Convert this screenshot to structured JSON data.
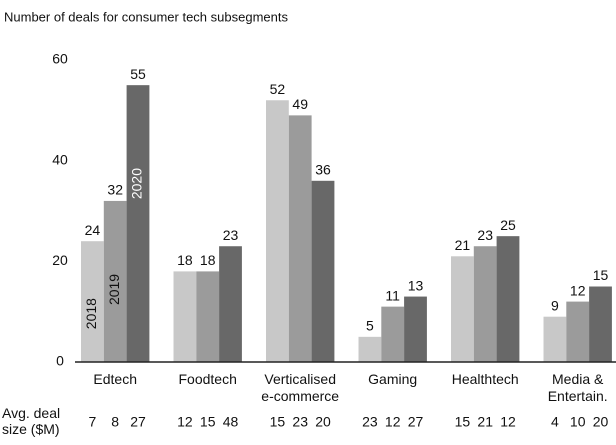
{
  "chart_data": {
    "type": "bar",
    "title": "Number of deals for consumer tech subsegments",
    "categories": [
      "Edtech",
      "Foodtech",
      "Verticalised\ne-commerce",
      "Gaming",
      "Healthtech",
      "Media &\nEntertain."
    ],
    "series": [
      {
        "name": "2018",
        "color": "#c8c8c8",
        "label_color": "#111",
        "values": [
          24,
          18,
          52,
          5,
          21,
          9
        ]
      },
      {
        "name": "2019",
        "color": "#9b9b9b",
        "label_color": "#111",
        "values": [
          32,
          18,
          49,
          11,
          23,
          12
        ]
      },
      {
        "name": "2020",
        "color": "#686868",
        "label_color": "#fff",
        "values": [
          55,
          23,
          36,
          13,
          25,
          15
        ]
      }
    ],
    "ylim": [
      0,
      60
    ],
    "yticks": [
      0,
      20,
      40,
      60
    ],
    "grid": false,
    "avg_deal_size": {
      "label": "Avg. deal\nsize ($M)",
      "series": [
        [
          7,
          12,
          15,
          23,
          15,
          4
        ],
        [
          8,
          15,
          23,
          12,
          21,
          10
        ],
        [
          27,
          48,
          20,
          27,
          12,
          20
        ]
      ]
    }
  }
}
